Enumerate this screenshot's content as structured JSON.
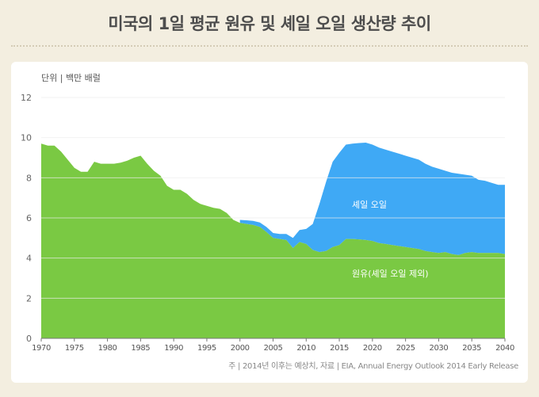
{
  "title": "미국의 1일 평균 원유 및 셰일 오일 생산량 추이",
  "unit_label": "단위 | 백만 배럴",
  "note": "주 | 2014년 이후는 예상치, 자료 | EIA, Annual Energy Outlook 2014 Early Release",
  "colors": {
    "crude": "#7ac943",
    "shale": "#3fa9f5",
    "background": "#f3eee0"
  },
  "chart_data": {
    "type": "area",
    "stacked": true,
    "xlim": [
      1970,
      2040
    ],
    "ylim": [
      0,
      12
    ],
    "x_ticks": [
      1970,
      1975,
      1980,
      1985,
      1990,
      1995,
      2000,
      2005,
      2010,
      2015,
      2020,
      2025,
      2030,
      2035,
      2040
    ],
    "y_ticks": [
      0,
      2,
      4,
      6,
      8,
      10,
      12
    ],
    "grid": true,
    "series": [
      {
        "name": "원유(셰일 오일 제외)",
        "points": [
          [
            1970,
            9.7
          ],
          [
            1971,
            9.6
          ],
          [
            1972,
            9.6
          ],
          [
            1973,
            9.3
          ],
          [
            1974,
            8.9
          ],
          [
            1975,
            8.5
          ],
          [
            1976,
            8.3
          ],
          [
            1977,
            8.3
          ],
          [
            1978,
            8.8
          ],
          [
            1979,
            8.7
          ],
          [
            1980,
            8.7
          ],
          [
            1981,
            8.7
          ],
          [
            1982,
            8.75
          ],
          [
            1983,
            8.85
          ],
          [
            1984,
            9.0
          ],
          [
            1985,
            9.1
          ],
          [
            1986,
            8.7
          ],
          [
            1987,
            8.35
          ],
          [
            1988,
            8.1
          ],
          [
            1989,
            7.6
          ],
          [
            1990,
            7.4
          ],
          [
            1991,
            7.4
          ],
          [
            1992,
            7.2
          ],
          [
            1993,
            6.9
          ],
          [
            1994,
            6.7
          ],
          [
            1995,
            6.6
          ],
          [
            1996,
            6.5
          ],
          [
            1997,
            6.45
          ],
          [
            1998,
            6.25
          ],
          [
            1999,
            5.9
          ],
          [
            2000,
            5.75
          ],
          [
            2001,
            5.7
          ],
          [
            2002,
            5.65
          ],
          [
            2003,
            5.55
          ],
          [
            2004,
            5.3
          ],
          [
            2005,
            5.0
          ],
          [
            2006,
            4.95
          ],
          [
            2007,
            4.9
          ],
          [
            2008,
            4.5
          ],
          [
            2009,
            4.8
          ],
          [
            2010,
            4.7
          ],
          [
            2011,
            4.4
          ],
          [
            2012,
            4.3
          ],
          [
            2013,
            4.35
          ],
          [
            2014,
            4.55
          ],
          [
            2015,
            4.65
          ],
          [
            2016,
            4.95
          ],
          [
            2017,
            4.95
          ],
          [
            2018,
            4.93
          ],
          [
            2019,
            4.9
          ],
          [
            2020,
            4.85
          ],
          [
            2021,
            4.75
          ],
          [
            2022,
            4.7
          ],
          [
            2023,
            4.65
          ],
          [
            2024,
            4.6
          ],
          [
            2025,
            4.55
          ],
          [
            2026,
            4.5
          ],
          [
            2027,
            4.45
          ],
          [
            2028,
            4.35
          ],
          [
            2029,
            4.3
          ],
          [
            2030,
            4.25
          ],
          [
            2031,
            4.3
          ],
          [
            2032,
            4.2
          ],
          [
            2033,
            4.15
          ],
          [
            2034,
            4.25
          ],
          [
            2035,
            4.3
          ],
          [
            2036,
            4.25
          ],
          [
            2037,
            4.25
          ],
          [
            2038,
            4.25
          ],
          [
            2039,
            4.25
          ],
          [
            2040,
            4.2
          ]
        ]
      },
      {
        "name": "셰일 오일",
        "points": [
          [
            2000,
            0.15
          ],
          [
            2001,
            0.18
          ],
          [
            2002,
            0.2
          ],
          [
            2003,
            0.22
          ],
          [
            2004,
            0.25
          ],
          [
            2005,
            0.25
          ],
          [
            2006,
            0.25
          ],
          [
            2007,
            0.3
          ],
          [
            2008,
            0.5
          ],
          [
            2009,
            0.6
          ],
          [
            2010,
            0.75
          ],
          [
            2011,
            1.3
          ],
          [
            2012,
            2.4
          ],
          [
            2013,
            3.45
          ],
          [
            2014,
            4.25
          ],
          [
            2015,
            4.6
          ],
          [
            2016,
            4.7
          ],
          [
            2017,
            4.75
          ],
          [
            2018,
            4.8
          ],
          [
            2019,
            4.85
          ],
          [
            2020,
            4.8
          ],
          [
            2021,
            4.75
          ],
          [
            2022,
            4.7
          ],
          [
            2023,
            4.65
          ],
          [
            2024,
            4.6
          ],
          [
            2025,
            4.55
          ],
          [
            2026,
            4.5
          ],
          [
            2027,
            4.45
          ],
          [
            2028,
            4.35
          ],
          [
            2029,
            4.25
          ],
          [
            2030,
            4.2
          ],
          [
            2031,
            4.05
          ],
          [
            2032,
            4.05
          ],
          [
            2033,
            4.05
          ],
          [
            2034,
            3.9
          ],
          [
            2035,
            3.8
          ],
          [
            2036,
            3.65
          ],
          [
            2037,
            3.6
          ],
          [
            2038,
            3.5
          ],
          [
            2039,
            3.4
          ],
          [
            2040,
            3.45
          ]
        ]
      }
    ]
  }
}
